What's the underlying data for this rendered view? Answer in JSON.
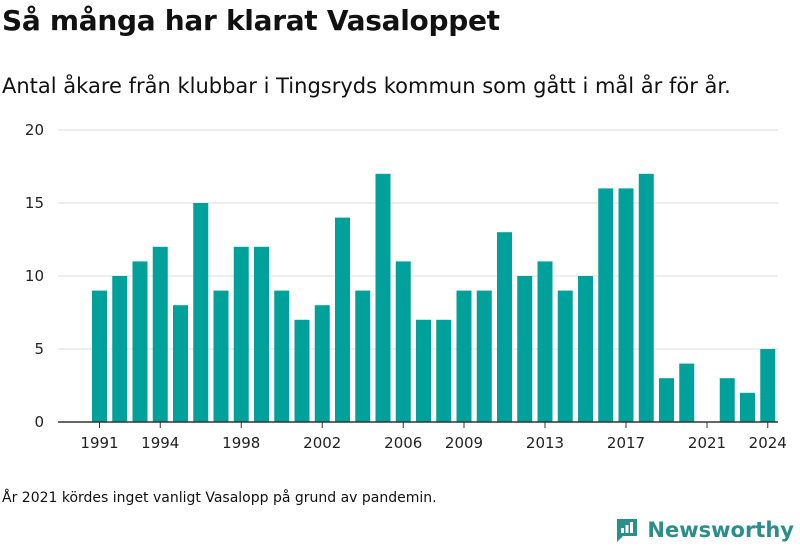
{
  "header": {
    "title": "Så många har klarat Vasaloppet",
    "subtitle": "Antal åkare från klubbar i Tingsryds kommun som gått i mål år för år."
  },
  "footer": {
    "note": "År 2021 kördes inget vanligt Vasalopp på grund av pandemin.",
    "brand": "Newsworthy"
  },
  "colors": {
    "bar": "#00a19a",
    "grid": "#dddddd",
    "axis": "#333333",
    "brand": "#2a8f8a"
  },
  "chart_data": {
    "type": "bar",
    "title": "Så många har klarat Vasaloppet",
    "subtitle": "Antal åkare från klubbar i Tingsryds kommun som gått i mål år för år.",
    "xlabel": "",
    "ylabel": "",
    "ylim": [
      0,
      20
    ],
    "yticks": [
      0,
      5,
      10,
      15,
      20
    ],
    "xtick_labels": [
      "1991",
      "1994",
      "1998",
      "2002",
      "2006",
      "2009",
      "2013",
      "2017",
      "2021",
      "2024"
    ],
    "grid": true,
    "categories": [
      "1991",
      "1992",
      "1993",
      "1994",
      "1995",
      "1996",
      "1997",
      "1998",
      "1999",
      "2000",
      "2001",
      "2002",
      "2003",
      "2004",
      "2005",
      "2006",
      "2007",
      "2008",
      "2009",
      "2010",
      "2011",
      "2012",
      "2013",
      "2014",
      "2015",
      "2016",
      "2017",
      "2018",
      "2019",
      "2020",
      "2021",
      "2022",
      "2023",
      "2024"
    ],
    "values": [
      9,
      10,
      11,
      12,
      8,
      15,
      9,
      12,
      12,
      9,
      7,
      8,
      14,
      9,
      17,
      11,
      7,
      7,
      9,
      9,
      13,
      10,
      11,
      9,
      10,
      16,
      16,
      17,
      3,
      4,
      0,
      3,
      2,
      5
    ]
  }
}
